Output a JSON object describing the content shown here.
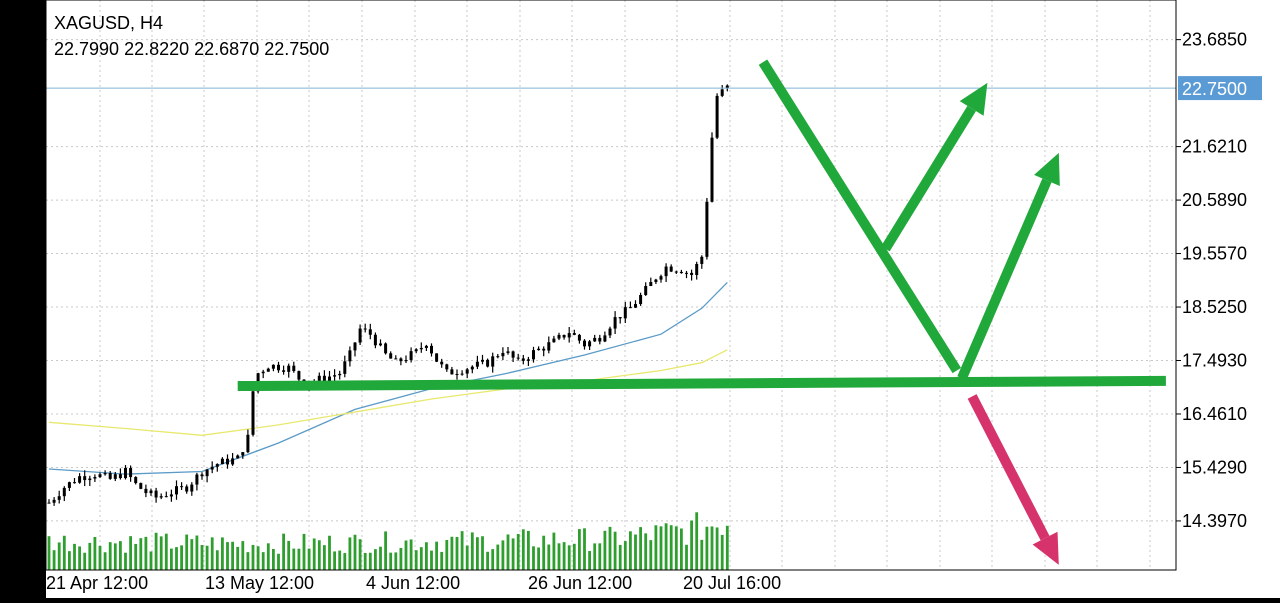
{
  "header": {
    "symbol_timeframe": "XAGUSD, H4",
    "ohlc": "22.7990 22.8220 22.6870 22.7500"
  },
  "price_label": "22.7500",
  "colors": {
    "background": "#ffffff",
    "frame": "#000000",
    "grid": "#c8c8c8",
    "candles": "#000000",
    "volume": "#2e9e2e",
    "ma_blue": "#5b9bc7",
    "ma_yellow": "#e8e86e",
    "price_line": "#7fb3d5",
    "price_label_bg": "#5b9bd5",
    "drawing_green": "#21a83a",
    "drawing_pink": "#d6336c"
  },
  "chart_data": {
    "type": "candlestick",
    "instrument": "XAGUSD",
    "timeframe": "H4",
    "last_bar": {
      "open": 22.799,
      "high": 22.822,
      "low": 22.687,
      "close": 22.75
    },
    "current_price": 22.75,
    "y_ticks": [
      "23.6850",
      "21.6210",
      "20.5890",
      "19.5570",
      "18.5250",
      "17.4930",
      "16.4610",
      "15.4290",
      "14.3970"
    ],
    "y_tick_values": [
      23.685,
      21.621,
      20.589,
      19.557,
      18.525,
      17.493,
      16.461,
      15.429,
      14.397
    ],
    "x_ticks": [
      "21 Apr 12:00",
      "13 May 12:00",
      "4 Jun 12:00",
      "26 Jun 12:00",
      "20 Jul 16:00"
    ],
    "ylim": [
      13.45,
      24.45
    ],
    "close_path": [
      [
        0,
        14.75
      ],
      [
        3,
        15.05
      ],
      [
        6,
        15.25
      ],
      [
        9,
        15.3
      ],
      [
        12,
        15.2
      ],
      [
        15,
        15.35
      ],
      [
        17,
        15.1
      ],
      [
        19,
        14.95
      ],
      [
        21,
        14.85
      ],
      [
        24,
        14.95
      ],
      [
        27,
        15.05
      ],
      [
        30,
        15.35
      ],
      [
        33,
        15.5
      ],
      [
        37,
        15.6
      ],
      [
        39,
        16.0
      ],
      [
        40,
        16.9
      ],
      [
        41,
        17.25
      ],
      [
        43,
        17.4
      ],
      [
        47,
        17.35
      ],
      [
        50,
        17.05
      ],
      [
        54,
        17.15
      ],
      [
        57,
        17.25
      ],
      [
        59,
        17.6
      ],
      [
        61,
        18.1
      ],
      [
        63,
        18.0
      ],
      [
        66,
        17.6
      ],
      [
        68,
        17.45
      ],
      [
        72,
        17.65
      ],
      [
        74,
        17.85
      ],
      [
        76,
        17.5
      ],
      [
        78,
        17.25
      ],
      [
        82,
        17.35
      ],
      [
        86,
        17.45
      ],
      [
        89,
        17.7
      ],
      [
        92,
        17.45
      ],
      [
        95,
        17.65
      ],
      [
        99,
        17.85
      ],
      [
        102,
        18.05
      ],
      [
        105,
        17.8
      ],
      [
        108,
        17.95
      ],
      [
        111,
        18.3
      ],
      [
        114,
        18.5
      ],
      [
        117,
        18.85
      ],
      [
        119,
        19.1
      ],
      [
        121,
        19.3
      ],
      [
        124,
        19.25
      ],
      [
        126,
        19.15
      ],
      [
        128,
        19.5
      ],
      [
        129,
        20.6
      ],
      [
        130,
        21.8
      ],
      [
        131,
        22.6
      ],
      [
        133,
        22.75
      ]
    ],
    "moving_averages": [
      {
        "color_key": "ma_blue",
        "points": [
          [
            0,
            15.4
          ],
          [
            15,
            15.3
          ],
          [
            30,
            15.35
          ],
          [
            45,
            15.9
          ],
          [
            60,
            16.55
          ],
          [
            75,
            16.95
          ],
          [
            90,
            17.25
          ],
          [
            105,
            17.6
          ],
          [
            120,
            18.0
          ],
          [
            128,
            18.5
          ],
          [
            133,
            19.0
          ]
        ]
      },
      {
        "color_key": "ma_yellow",
        "points": [
          [
            0,
            16.3
          ],
          [
            15,
            16.18
          ],
          [
            30,
            16.05
          ],
          [
            45,
            16.25
          ],
          [
            60,
            16.5
          ],
          [
            75,
            16.75
          ],
          [
            90,
            16.95
          ],
          [
            105,
            17.1
          ],
          [
            120,
            17.3
          ],
          [
            128,
            17.45
          ],
          [
            133,
            17.7
          ]
        ]
      }
    ],
    "volume_envelope": [
      [
        0,
        0.55
      ],
      [
        40,
        0.5
      ],
      [
        80,
        0.55
      ],
      [
        110,
        0.6
      ],
      [
        125,
        0.75
      ],
      [
        133,
        0.95
      ]
    ],
    "drawings": [
      {
        "kind": "line",
        "color_key": "drawing_green",
        "from": [
          37,
          17.0
        ],
        "to": [
          219,
          17.1
        ]
      },
      {
        "kind": "line",
        "color_key": "drawing_green",
        "from": [
          140,
          23.25
        ],
        "to": [
          178,
          17.3
        ]
      },
      {
        "kind": "arrow",
        "color_key": "drawing_green",
        "from": [
          164,
          19.65
        ],
        "to": [
          184,
          22.85
        ]
      },
      {
        "kind": "arrow",
        "color_key": "drawing_green",
        "from": [
          179,
          17.15
        ],
        "to": [
          198,
          21.5
        ]
      },
      {
        "kind": "arrow",
        "color_key": "drawing_pink",
        "from": [
          181,
          16.8
        ],
        "to": [
          198,
          13.55
        ]
      }
    ]
  }
}
